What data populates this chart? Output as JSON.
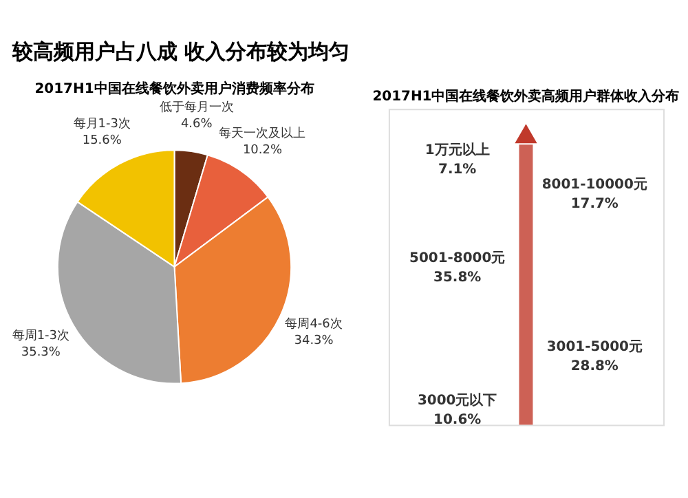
{
  "chart_data": [
    {
      "type": "pie",
      "title": "2017H1中国在线餐饮外卖用户消费频率分布",
      "annotations": [
        "较高频用户占八成 收入分布较为均匀"
      ],
      "categories": [
        "低于每月一次",
        "每天一次及以上",
        "每周4-6次",
        "每周1-3次",
        "每月1-3次"
      ],
      "values": [
        4.6,
        10.2,
        34.3,
        35.3,
        15.6
      ],
      "value_labels": [
        "4.6%",
        "10.2%",
        "34.3%",
        "35.3%",
        "15.6%"
      ],
      "colors": [
        "#6b2e12",
        "#e8603c",
        "#ed7d31",
        "#a6a6a6",
        "#f2c200"
      ]
    },
    {
      "type": "other",
      "title": "2017H1中国在线餐饮外卖高频用户群体收入分布",
      "categories": [
        "3000元以下",
        "3001-5000元",
        "5001-8000元",
        "8001-10000元",
        "1万元以上"
      ],
      "values": [
        10.6,
        28.8,
        35.8,
        17.7,
        7.1
      ],
      "value_labels": [
        "10.6%",
        "28.8%",
        "35.8%",
        "17.7%",
        "7.1%"
      ],
      "color": "#c0392b"
    }
  ]
}
